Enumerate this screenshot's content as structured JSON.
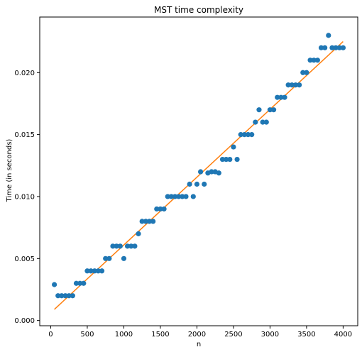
{
  "chart_data": {
    "type": "scatter",
    "title": "MST time complexity",
    "xlabel": "n",
    "ylabel": "Time (in seconds)",
    "xlim": [
      -150,
      4200
    ],
    "ylim": [
      -0.00042,
      0.02448
    ],
    "x_ticks": [
      0,
      500,
      1000,
      1500,
      2000,
      2500,
      3000,
      3500,
      4000
    ],
    "y_ticks": [
      0.0,
      0.005,
      0.01,
      0.015,
      0.02
    ],
    "x_tick_labels": [
      "0",
      "500",
      "1000",
      "1500",
      "2000",
      "2500",
      "3000",
      "3500",
      "4000"
    ],
    "y_tick_labels": [
      "0.000",
      "0.005",
      "0.010",
      "0.015",
      "0.020"
    ],
    "grid": false,
    "series": [
      {
        "kind": "scatter",
        "color": "#1f77b4",
        "x": [
          50,
          100,
          150,
          200,
          250,
          300,
          350,
          400,
          450,
          500,
          550,
          600,
          650,
          700,
          750,
          800,
          850,
          900,
          950,
          1000,
          1050,
          1100,
          1150,
          1200,
          1250,
          1300,
          1350,
          1400,
          1450,
          1500,
          1550,
          1600,
          1650,
          1700,
          1750,
          1800,
          1850,
          1900,
          1950,
          2000,
          2050,
          2100,
          2150,
          2200,
          2250,
          2300,
          2350,
          2400,
          2450,
          2500,
          2550,
          2600,
          2650,
          2700,
          2750,
          2800,
          2850,
          2900,
          2950,
          3000,
          3050,
          3100,
          3150,
          3200,
          3250,
          3300,
          3350,
          3400,
          3450,
          3500,
          3550,
          3600,
          3650,
          3700,
          3750,
          3800,
          3850,
          3900,
          3950,
          4000
        ],
        "y": [
          0.0029,
          0.002,
          0.002,
          0.002,
          0.002,
          0.002,
          0.003,
          0.003,
          0.003,
          0.004,
          0.004,
          0.004,
          0.004,
          0.004,
          0.005,
          0.005,
          0.006,
          0.006,
          0.006,
          0.005,
          0.006,
          0.006,
          0.006,
          0.007,
          0.008,
          0.008,
          0.008,
          0.008,
          0.009,
          0.009,
          0.009,
          0.01,
          0.01,
          0.01,
          0.01,
          0.01,
          0.01,
          0.011,
          0.01,
          0.011,
          0.012,
          0.011,
          0.0119,
          0.012,
          0.012,
          0.0119,
          0.013,
          0.013,
          0.013,
          0.014,
          0.013,
          0.015,
          0.015,
          0.015,
          0.015,
          0.016,
          0.017,
          0.016,
          0.016,
          0.017,
          0.017,
          0.018,
          0.018,
          0.018,
          0.019,
          0.019,
          0.019,
          0.019,
          0.02,
          0.02,
          0.021,
          0.021,
          0.021,
          0.022,
          0.022,
          0.023,
          0.022,
          0.022,
          0.022,
          0.022
        ]
      },
      {
        "kind": "line",
        "color": "#ff7f0e",
        "x": [
          50,
          4000
        ],
        "y": [
          0.0009,
          0.0225
        ]
      }
    ]
  }
}
